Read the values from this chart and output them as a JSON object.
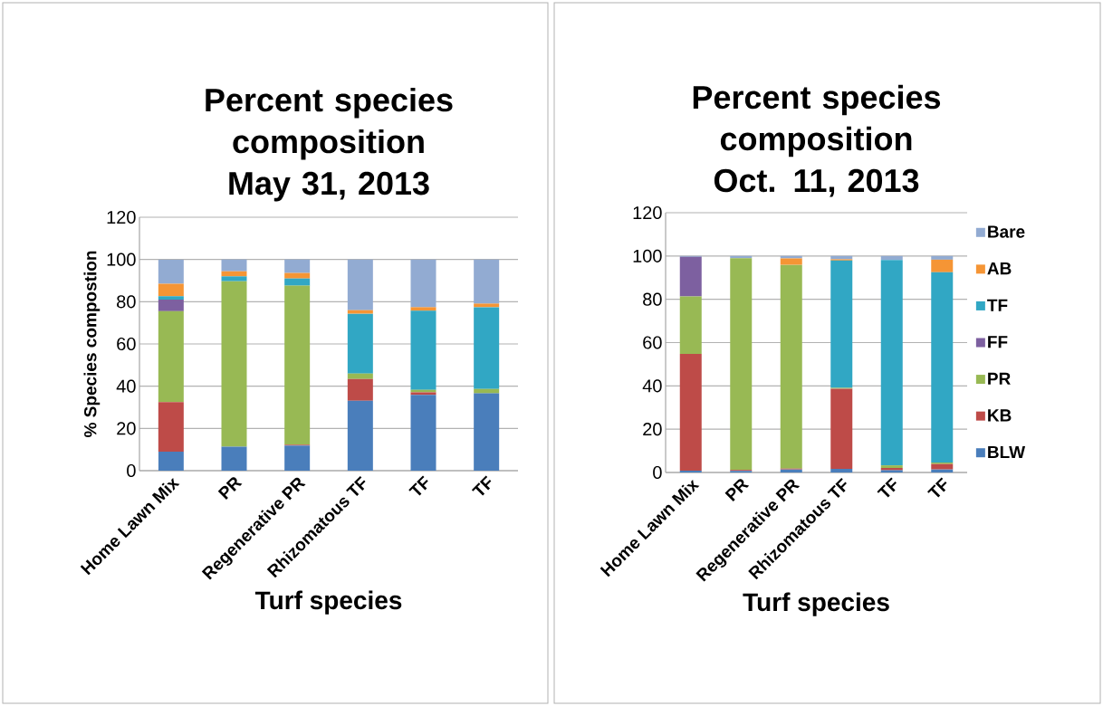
{
  "chart_data": [
    {
      "type": "bar",
      "stacked": true,
      "title": "Percent species composition May 31, 2013",
      "xlabel": "Turf species",
      "ylabel": "% Species compostion",
      "categories": [
        "Home Lawn Mix",
        "PR",
        "Regenerative PR",
        "Rhizomatous TF",
        "TF",
        "TF"
      ],
      "ylim": [
        0,
        120
      ],
      "yticks": [
        0,
        20,
        40,
        60,
        80,
        100,
        120
      ],
      "grid": "y",
      "legend": false,
      "series": [
        {
          "color": "#4a7ebb",
          "values": [
            9,
            11.4,
            11.9,
            33.1,
            35.9,
            36.6
          ]
        },
        {
          "color": "#be4b48",
          "values": [
            23.5,
            0,
            0.4,
            10.3,
            1.2,
            0
          ]
        },
        {
          "color": "#98b954",
          "values": [
            43,
            78.3,
            75.3,
            2.6,
            1.2,
            2.1
          ]
        },
        {
          "color": "#7d60a0",
          "values": [
            5.5,
            0,
            0,
            0,
            0,
            0
          ]
        },
        {
          "color": "#31a7c4",
          "values": [
            1.6,
            2.3,
            3.4,
            28.3,
            37.4,
            38.7
          ]
        },
        {
          "color": "#f59535",
          "values": [
            5.9,
            2.4,
            2.6,
            1.7,
            1.7,
            1.7
          ]
        },
        {
          "color": "#92abd2",
          "values": [
            11.4,
            5.6,
            6.4,
            24,
            22.6,
            20.9
          ]
        }
      ]
    },
    {
      "type": "bar",
      "stacked": true,
      "title": "Percent species composition Oct. 11, 2013",
      "xlabel": "Turf species",
      "categories": [
        "Home Lawn Mix",
        "PR",
        "Regenerative PR",
        "Rhizomatous TF",
        "TF",
        "TF"
      ],
      "ylim": [
        0,
        120
      ],
      "yticks": [
        0,
        20,
        40,
        60,
        80,
        100,
        120
      ],
      "grid": "y",
      "legend": "right",
      "series": [
        {
          "name": "BLW",
          "color": "#4a7ebb",
          "values": [
            0.8,
            0.7,
            1.4,
            1.7,
            1,
            1.4
          ]
        },
        {
          "name": "KB",
          "color": "#be4b48",
          "values": [
            54,
            0.5,
            0.4,
            37,
            1.1,
            2.5
          ]
        },
        {
          "name": "PR",
          "color": "#98b954",
          "values": [
            26.5,
            97.8,
            94.1,
            0.4,
            1.2,
            0.7
          ]
        },
        {
          "name": "FF",
          "color": "#7d60a0",
          "values": [
            18.3,
            0,
            0,
            0,
            0,
            0
          ]
        },
        {
          "name": "TF",
          "color": "#31a7c4",
          "values": [
            0,
            0,
            0,
            58.8,
            94.9,
            87.9
          ]
        },
        {
          "name": "AB",
          "color": "#f59535",
          "values": [
            0,
            0,
            3,
            0.6,
            0,
            5.8
          ]
        },
        {
          "name": "Bare",
          "color": "#92abd2",
          "values": [
            0.4,
            1,
            1.1,
            1.5,
            1.8,
            1.7
          ]
        }
      ]
    }
  ]
}
